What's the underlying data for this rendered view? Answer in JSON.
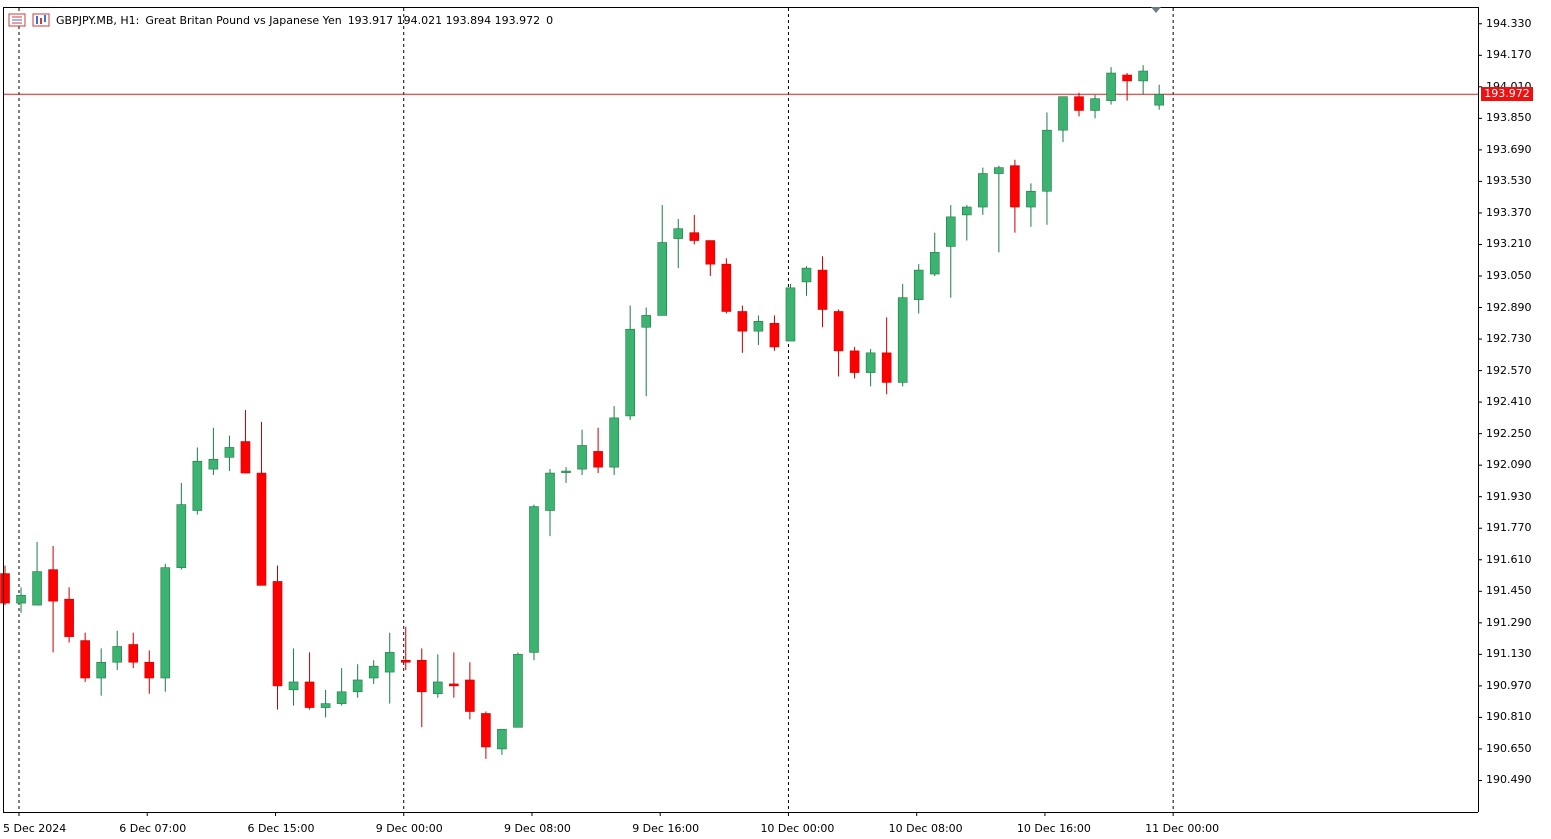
{
  "header": {
    "symbol": "GBPJPY.MB, H1:",
    "description": "Great Britan Pound vs Japanese Yen",
    "ohlc": "193.917 194.021 193.894 193.972",
    "extra": "0"
  },
  "current_price_tag": "193.972",
  "icons": {
    "menu": "list-menu-icon",
    "chart": "bar-chart-icon"
  },
  "colors": {
    "bull": "#3cb371",
    "bear": "#ff0000",
    "price_line": "#e11d1d",
    "grid": "#000000"
  },
  "chart_data": {
    "type": "candlestick",
    "timeframe": "H1",
    "ylim": [
      190.33,
      194.41
    ],
    "y_ticks": [
      "194.330",
      "194.170",
      "194.010",
      "193.850",
      "193.690",
      "193.530",
      "193.370",
      "193.210",
      "193.050",
      "192.890",
      "192.730",
      "192.570",
      "192.410",
      "192.250",
      "192.090",
      "191.930",
      "191.770",
      "191.610",
      "191.450",
      "191.290",
      "191.130",
      "190.970",
      "190.810",
      "190.650",
      "190.490"
    ],
    "x_labels": [
      "5 Dec 2024",
      "6 Dec 07:00",
      "6 Dec 15:00",
      "9 Dec 00:00",
      "9 Dec 08:00",
      "9 Dec 16:00",
      "10 Dec 00:00",
      "10 Dec 08:00",
      "10 Dec 16:00",
      "11 Dec 00:00"
    ],
    "day_separators": [
      "5 Dec 2024",
      "9 Dec 00:00",
      "10 Dec 00:00",
      "11 Dec 00:00"
    ],
    "current_price": 193.972,
    "candles": [
      [
        191.54,
        191.58,
        191.38,
        191.39
      ],
      [
        191.39,
        191.47,
        191.34,
        191.43
      ],
      [
        191.38,
        191.7,
        191.38,
        191.55
      ],
      [
        191.56,
        191.68,
        191.14,
        191.4
      ],
      [
        191.41,
        191.47,
        191.19,
        191.22
      ],
      [
        191.2,
        191.24,
        190.99,
        191.01
      ],
      [
        191.01,
        191.16,
        190.92,
        191.09
      ],
      [
        191.09,
        191.25,
        191.05,
        191.17
      ],
      [
        191.18,
        191.24,
        191.06,
        191.09
      ],
      [
        191.09,
        191.15,
        190.93,
        191.01
      ],
      [
        191.01,
        191.59,
        190.94,
        191.57
      ],
      [
        191.57,
        192.0,
        191.56,
        191.89
      ],
      [
        191.86,
        192.18,
        191.84,
        192.11
      ],
      [
        192.07,
        192.28,
        192.04,
        192.12
      ],
      [
        192.13,
        192.24,
        192.06,
        192.18
      ],
      [
        192.21,
        192.37,
        192.05,
        192.05
      ],
      [
        192.05,
        192.31,
        191.48,
        191.48
      ],
      [
        191.5,
        191.58,
        190.85,
        190.97
      ],
      [
        190.95,
        191.16,
        190.87,
        190.99
      ],
      [
        190.99,
        191.14,
        190.85,
        190.86
      ],
      [
        190.86,
        190.95,
        190.81,
        190.88
      ],
      [
        190.88,
        191.06,
        190.87,
        190.94
      ],
      [
        190.94,
        191.08,
        190.91,
        191.0
      ],
      [
        191.01,
        191.1,
        190.98,
        191.07
      ],
      [
        191.04,
        191.24,
        190.88,
        191.14
      ],
      [
        191.1,
        191.27,
        191.05,
        191.09
      ],
      [
        191.1,
        191.16,
        190.76,
        190.94
      ],
      [
        190.93,
        191.13,
        190.91,
        190.99
      ],
      [
        190.98,
        191.14,
        190.91,
        190.97
      ],
      [
        191.0,
        191.09,
        190.8,
        190.84
      ],
      [
        190.83,
        190.84,
        190.6,
        190.66
      ],
      [
        190.65,
        190.75,
        190.62,
        190.75
      ],
      [
        190.76,
        191.14,
        190.76,
        191.13
      ],
      [
        191.14,
        191.89,
        191.1,
        191.88
      ],
      [
        191.86,
        192.07,
        191.73,
        192.05
      ],
      [
        192.06,
        192.08,
        192.0,
        192.06
      ],
      [
        192.07,
        192.27,
        192.04,
        192.19
      ],
      [
        192.16,
        192.28,
        192.05,
        192.08
      ],
      [
        192.08,
        192.39,
        192.04,
        192.33
      ],
      [
        192.34,
        192.9,
        192.32,
        192.78
      ],
      [
        192.79,
        192.89,
        192.44,
        192.85
      ],
      [
        192.85,
        193.41,
        192.85,
        193.22
      ],
      [
        193.24,
        193.34,
        193.09,
        193.29
      ],
      [
        193.27,
        193.36,
        193.21,
        193.23
      ],
      [
        193.23,
        193.23,
        193.05,
        193.11
      ],
      [
        193.11,
        193.14,
        192.86,
        192.87
      ],
      [
        192.87,
        192.9,
        192.66,
        192.77
      ],
      [
        192.77,
        192.85,
        192.7,
        192.82
      ],
      [
        192.81,
        192.85,
        192.67,
        192.69
      ],
      [
        192.72,
        193.01,
        192.72,
        192.99
      ],
      [
        193.02,
        193.1,
        192.95,
        193.09
      ],
      [
        193.08,
        193.15,
        192.79,
        192.88
      ],
      [
        192.87,
        192.88,
        192.54,
        192.67
      ],
      [
        192.67,
        192.69,
        192.53,
        192.56
      ],
      [
        192.56,
        192.68,
        192.49,
        192.66
      ],
      [
        192.66,
        192.84,
        192.45,
        192.51
      ],
      [
        192.51,
        193.01,
        192.49,
        192.94
      ],
      [
        192.93,
        193.11,
        192.86,
        193.08
      ],
      [
        193.06,
        193.27,
        193.05,
        193.17
      ],
      [
        193.2,
        193.41,
        192.94,
        193.35
      ],
      [
        193.36,
        193.41,
        193.23,
        193.4
      ],
      [
        193.4,
        193.6,
        193.36,
        193.57
      ],
      [
        193.57,
        193.61,
        193.17,
        193.6
      ],
      [
        193.61,
        193.64,
        193.27,
        193.4
      ],
      [
        193.4,
        193.52,
        193.3,
        193.48
      ],
      [
        193.48,
        193.88,
        193.31,
        193.79
      ],
      [
        193.79,
        193.96,
        193.73,
        193.96
      ],
      [
        193.96,
        193.98,
        193.86,
        193.89
      ],
      [
        193.89,
        193.97,
        193.85,
        193.95
      ],
      [
        193.94,
        194.11,
        193.92,
        194.08
      ],
      [
        194.07,
        194.08,
        193.94,
        194.04
      ],
      [
        194.04,
        194.12,
        193.97,
        194.09
      ],
      [
        193.917,
        194.021,
        193.894,
        193.972
      ]
    ]
  }
}
